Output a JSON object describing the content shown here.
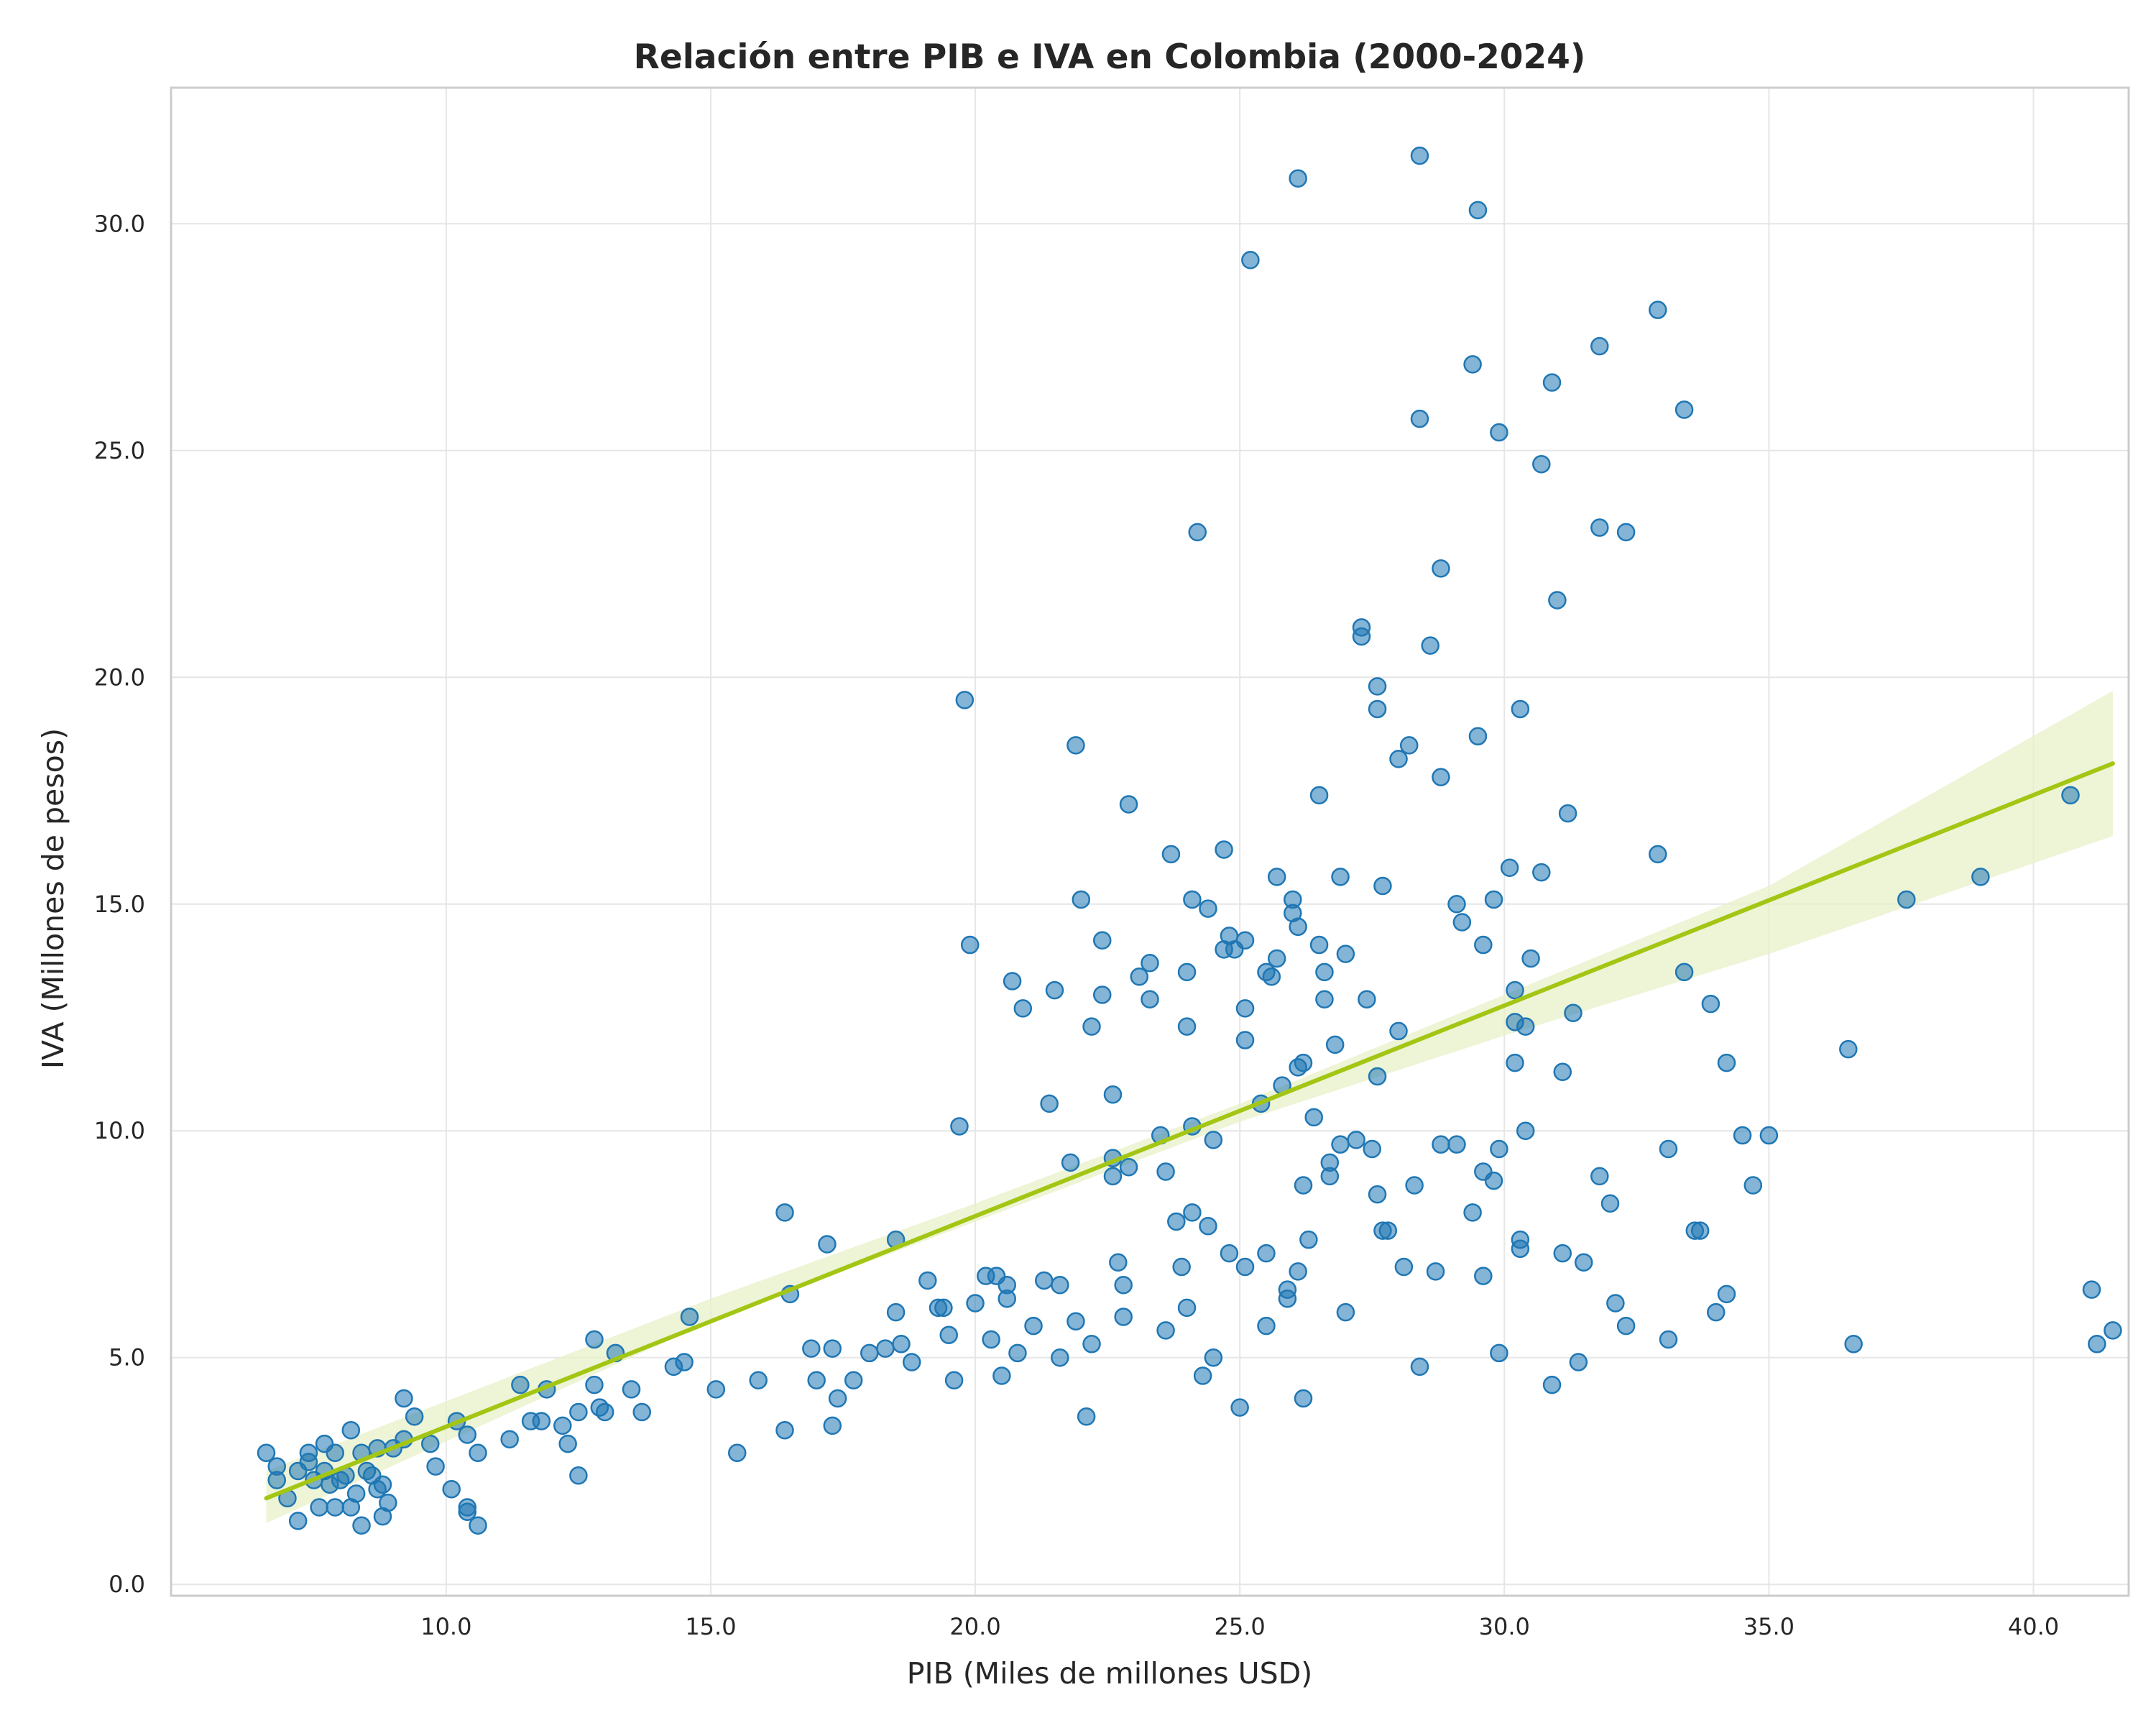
{
  "chart_data": {
    "type": "scatter",
    "title": "Relación entre PIB e IVA en Colombia (2000-2024)",
    "xlabel": "PIB (Miles de millones USD)",
    "ylabel": "IVA (Millones de pesos)",
    "xlim": [
      4.8,
      41.8
    ],
    "ylim": [
      -0.25,
      33.0
    ],
    "xticks": [
      10.0,
      15.0,
      20.0,
      25.0,
      30.0,
      35.0,
      40.0
    ],
    "yticks": [
      0.0,
      5.0,
      10.0,
      15.0,
      20.0,
      25.0,
      30.0
    ],
    "xtick_labels": [
      "10.0",
      "15.0",
      "20.0",
      "25.0",
      "30.0",
      "35.0",
      "40.0"
    ],
    "ytick_labels": [
      "0.0",
      "5.0",
      "10.0",
      "15.0",
      "20.0",
      "25.0",
      "30.0"
    ],
    "grid": true,
    "colors": {
      "points": "#1f77b4",
      "regression": "#a3c614",
      "band": "#e8f0c8",
      "grid": "#e6e6e6",
      "frame": "#cccccc"
    },
    "points": [
      [
        6.6,
        2.9
      ],
      [
        6.8,
        2.6
      ],
      [
        6.8,
        2.3
      ],
      [
        7.0,
        1.9
      ],
      [
        7.2,
        1.4
      ],
      [
        7.2,
        2.5
      ],
      [
        7.4,
        2.9
      ],
      [
        7.4,
        2.7
      ],
      [
        7.5,
        2.3
      ],
      [
        7.6,
        1.7
      ],
      [
        7.7,
        3.1
      ],
      [
        7.7,
        2.5
      ],
      [
        7.8,
        2.2
      ],
      [
        7.9,
        1.7
      ],
      [
        7.9,
        2.9
      ],
      [
        8.0,
        2.3
      ],
      [
        8.1,
        2.4
      ],
      [
        8.2,
        1.7
      ],
      [
        8.2,
        3.4
      ],
      [
        8.3,
        2.0
      ],
      [
        8.4,
        1.3
      ],
      [
        8.4,
        2.9
      ],
      [
        8.5,
        2.5
      ],
      [
        8.6,
        2.4
      ],
      [
        8.7,
        3.0
      ],
      [
        8.7,
        2.1
      ],
      [
        8.8,
        2.2
      ],
      [
        8.8,
        1.5
      ],
      [
        8.9,
        1.8
      ],
      [
        9.0,
        3.0
      ],
      [
        9.2,
        3.2
      ],
      [
        9.2,
        4.1
      ],
      [
        9.4,
        3.7
      ],
      [
        9.7,
        3.1
      ],
      [
        9.8,
        2.6
      ],
      [
        10.1,
        2.1
      ],
      [
        10.2,
        3.6
      ],
      [
        10.4,
        3.3
      ],
      [
        10.4,
        1.7
      ],
      [
        10.4,
        1.6
      ],
      [
        10.6,
        2.9
      ],
      [
        10.6,
        1.3
      ],
      [
        11.2,
        3.2
      ],
      [
        11.4,
        4.4
      ],
      [
        11.6,
        3.6
      ],
      [
        11.8,
        3.6
      ],
      [
        11.9,
        4.3
      ],
      [
        12.2,
        3.5
      ],
      [
        12.3,
        3.1
      ],
      [
        12.5,
        2.4
      ],
      [
        12.5,
        3.8
      ],
      [
        12.8,
        5.4
      ],
      [
        12.8,
        4.4
      ],
      [
        12.9,
        3.9
      ],
      [
        13.0,
        3.8
      ],
      [
        13.2,
        5.1
      ],
      [
        13.5,
        4.3
      ],
      [
        13.7,
        3.8
      ],
      [
        14.3,
        4.8
      ],
      [
        14.5,
        4.9
      ],
      [
        14.6,
        5.9
      ],
      [
        15.1,
        4.3
      ],
      [
        15.5,
        2.9
      ],
      [
        15.9,
        4.5
      ],
      [
        16.4,
        8.2
      ],
      [
        16.4,
        3.4
      ],
      [
        16.5,
        6.4
      ],
      [
        16.9,
        5.2
      ],
      [
        17.0,
        4.5
      ],
      [
        17.2,
        7.5
      ],
      [
        17.3,
        5.2
      ],
      [
        17.3,
        3.5
      ],
      [
        17.4,
        4.1
      ],
      [
        17.7,
        4.5
      ],
      [
        18.0,
        5.1
      ],
      [
        18.3,
        5.2
      ],
      [
        18.5,
        7.6
      ],
      [
        18.5,
        6.0
      ],
      [
        18.6,
        5.3
      ],
      [
        18.8,
        4.9
      ],
      [
        19.1,
        6.7
      ],
      [
        19.3,
        6.1
      ],
      [
        19.4,
        6.1
      ],
      [
        19.5,
        5.5
      ],
      [
        19.6,
        4.5
      ],
      [
        19.7,
        10.1
      ],
      [
        19.8,
        19.5
      ],
      [
        19.9,
        14.1
      ],
      [
        20.0,
        6.2
      ],
      [
        20.2,
        6.8
      ],
      [
        20.3,
        5.4
      ],
      [
        20.4,
        6.8
      ],
      [
        20.5,
        4.6
      ],
      [
        20.6,
        6.6
      ],
      [
        20.6,
        6.3
      ],
      [
        20.7,
        13.3
      ],
      [
        20.8,
        5.1
      ],
      [
        20.9,
        12.7
      ],
      [
        21.1,
        5.7
      ],
      [
        21.3,
        6.7
      ],
      [
        21.4,
        10.6
      ],
      [
        21.5,
        13.1
      ],
      [
        21.6,
        6.6
      ],
      [
        21.6,
        5.0
      ],
      [
        21.8,
        9.3
      ],
      [
        21.9,
        18.5
      ],
      [
        21.9,
        5.8
      ],
      [
        22.0,
        15.1
      ],
      [
        22.1,
        3.7
      ],
      [
        22.2,
        12.3
      ],
      [
        22.2,
        5.3
      ],
      [
        22.4,
        14.2
      ],
      [
        22.4,
        13.0
      ],
      [
        22.6,
        9.4
      ],
      [
        22.6,
        10.8
      ],
      [
        22.6,
        9.0
      ],
      [
        22.7,
        7.1
      ],
      [
        22.8,
        6.6
      ],
      [
        22.8,
        5.9
      ],
      [
        22.9,
        17.2
      ],
      [
        22.9,
        9.2
      ],
      [
        23.1,
        13.4
      ],
      [
        23.3,
        13.7
      ],
      [
        23.3,
        12.9
      ],
      [
        23.5,
        9.9
      ],
      [
        23.6,
        9.1
      ],
      [
        23.6,
        5.6
      ],
      [
        23.7,
        16.1
      ],
      [
        23.8,
        8.0
      ],
      [
        23.9,
        7.0
      ],
      [
        24.0,
        13.5
      ],
      [
        24.0,
        12.3
      ],
      [
        24.0,
        6.1
      ],
      [
        24.1,
        15.1
      ],
      [
        24.1,
        8.2
      ],
      [
        24.1,
        10.1
      ],
      [
        24.2,
        23.2
      ],
      [
        24.3,
        4.6
      ],
      [
        24.4,
        14.9
      ],
      [
        24.4,
        7.9
      ],
      [
        24.5,
        9.8
      ],
      [
        24.5,
        5.0
      ],
      [
        24.7,
        16.2
      ],
      [
        24.7,
        14.0
      ],
      [
        24.8,
        14.3
      ],
      [
        24.8,
        7.3
      ],
      [
        24.9,
        14.0
      ],
      [
        25.0,
        3.9
      ],
      [
        25.1,
        14.2
      ],
      [
        25.1,
        12.7
      ],
      [
        25.1,
        12.0
      ],
      [
        25.1,
        7.0
      ],
      [
        25.2,
        29.2
      ],
      [
        25.4,
        10.6
      ],
      [
        25.5,
        13.5
      ],
      [
        25.5,
        7.3
      ],
      [
        25.5,
        5.7
      ],
      [
        25.6,
        13.4
      ],
      [
        25.7,
        15.6
      ],
      [
        25.7,
        13.8
      ],
      [
        25.8,
        11.0
      ],
      [
        25.9,
        6.5
      ],
      [
        25.9,
        6.3
      ],
      [
        26.0,
        14.8
      ],
      [
        26.0,
        15.1
      ],
      [
        26.1,
        11.4
      ],
      [
        26.1,
        31.0
      ],
      [
        26.1,
        14.5
      ],
      [
        26.1,
        6.9
      ],
      [
        26.2,
        4.1
      ],
      [
        26.2,
        11.5
      ],
      [
        26.2,
        8.8
      ],
      [
        26.3,
        7.6
      ],
      [
        26.4,
        10.3
      ],
      [
        26.5,
        14.1
      ],
      [
        26.5,
        17.4
      ],
      [
        26.6,
        13.5
      ],
      [
        26.6,
        12.9
      ],
      [
        26.7,
        9.3
      ],
      [
        26.7,
        9.0
      ],
      [
        26.8,
        11.9
      ],
      [
        26.9,
        15.6
      ],
      [
        26.9,
        9.7
      ],
      [
        27.0,
        13.9
      ],
      [
        27.0,
        6.0
      ],
      [
        27.2,
        9.8
      ],
      [
        27.3,
        21.1
      ],
      [
        27.3,
        20.9
      ],
      [
        27.4,
        12.9
      ],
      [
        27.5,
        9.6
      ],
      [
        27.6,
        19.8
      ],
      [
        27.6,
        19.3
      ],
      [
        27.6,
        11.2
      ],
      [
        27.6,
        8.6
      ],
      [
        27.7,
        15.4
      ],
      [
        27.7,
        7.8
      ],
      [
        27.8,
        7.8
      ],
      [
        28.0,
        18.2
      ],
      [
        28.0,
        12.2
      ],
      [
        28.1,
        7.0
      ],
      [
        28.2,
        18.5
      ],
      [
        28.3,
        8.8
      ],
      [
        28.4,
        31.5
      ],
      [
        28.4,
        25.7
      ],
      [
        28.4,
        4.8
      ],
      [
        28.6,
        20.7
      ],
      [
        28.7,
        6.9
      ],
      [
        28.8,
        22.4
      ],
      [
        28.8,
        17.8
      ],
      [
        28.8,
        9.7
      ],
      [
        29.1,
        15.0
      ],
      [
        29.1,
        9.7
      ],
      [
        29.2,
        14.6
      ],
      [
        29.4,
        26.9
      ],
      [
        29.4,
        8.2
      ],
      [
        29.5,
        30.3
      ],
      [
        29.5,
        18.7
      ],
      [
        29.6,
        9.1
      ],
      [
        29.6,
        14.1
      ],
      [
        29.6,
        6.8
      ],
      [
        29.8,
        15.1
      ],
      [
        29.8,
        8.9
      ],
      [
        29.9,
        25.4
      ],
      [
        29.9,
        9.6
      ],
      [
        29.9,
        5.1
      ],
      [
        30.1,
        15.8
      ],
      [
        30.2,
        13.1
      ],
      [
        30.2,
        12.4
      ],
      [
        30.2,
        11.5
      ],
      [
        30.3,
        19.3
      ],
      [
        30.3,
        7.6
      ],
      [
        30.3,
        7.4
      ],
      [
        30.4,
        12.3
      ],
      [
        30.4,
        10.0
      ],
      [
        30.5,
        13.8
      ],
      [
        30.7,
        24.7
      ],
      [
        30.7,
        15.7
      ],
      [
        30.9,
        26.5
      ],
      [
        30.9,
        4.4
      ],
      [
        31.0,
        21.7
      ],
      [
        31.1,
        11.3
      ],
      [
        31.1,
        7.3
      ],
      [
        31.2,
        17.0
      ],
      [
        31.3,
        12.6
      ],
      [
        31.4,
        4.9
      ],
      [
        31.5,
        7.1
      ],
      [
        31.8,
        27.3
      ],
      [
        31.8,
        23.3
      ],
      [
        31.8,
        9.0
      ],
      [
        32.0,
        8.4
      ],
      [
        32.1,
        6.2
      ],
      [
        32.3,
        23.2
      ],
      [
        32.3,
        5.7
      ],
      [
        32.9,
        28.1
      ],
      [
        32.9,
        16.1
      ],
      [
        33.1,
        9.6
      ],
      [
        33.1,
        5.4
      ],
      [
        33.4,
        25.9
      ],
      [
        33.4,
        13.5
      ],
      [
        33.6,
        7.8
      ],
      [
        33.7,
        7.8
      ],
      [
        33.9,
        12.8
      ],
      [
        34.0,
        6.0
      ],
      [
        34.2,
        11.5
      ],
      [
        34.2,
        6.4
      ],
      [
        34.5,
        9.9
      ],
      [
        34.7,
        8.8
      ],
      [
        35.0,
        9.9
      ],
      [
        36.5,
        11.8
      ],
      [
        36.6,
        5.3
      ],
      [
        37.6,
        15.1
      ],
      [
        39.0,
        15.6
      ],
      [
        40.7,
        17.4
      ],
      [
        41.1,
        6.5
      ],
      [
        41.2,
        5.3
      ],
      [
        41.5,
        5.6
      ]
    ],
    "regression": {
      "x_start": 6.6,
      "y_start": 1.9,
      "x_end": 41.5,
      "y_end": 18.1
    },
    "confidence_band": {
      "x": [
        6.6,
        15.0,
        20.0,
        25.0,
        30.0,
        35.0,
        41.5
      ],
      "lower": [
        1.35,
        5.8,
        8.0,
        10.2,
        12.1,
        13.9,
        16.5
      ],
      "upper": [
        2.5,
        6.3,
        8.4,
        10.6,
        13.0,
        15.4,
        19.7
      ]
    }
  }
}
